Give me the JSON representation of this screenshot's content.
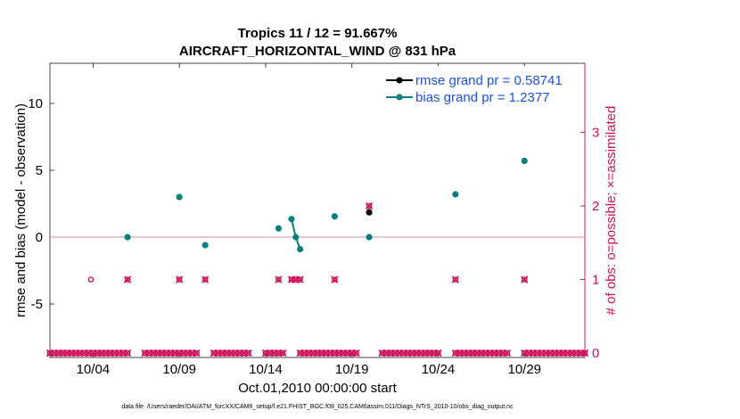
{
  "chart_data": {
    "type": "scatter",
    "title_line1": "Tropics 11 / 12 = 91.667%",
    "title_line2": "AIRCRAFT_HORIZONTAL_WIND @ 831 hPa",
    "ylabel": "rmse and bias (model - observation)",
    "y2label": "# of obs: o=possible; ×=assimilated",
    "xlabel": "Oct.01,2010 00:00:00 start",
    "footnote": "data file: /Users/raeder/DAI/ATM_forcXX/CAM6_setup/f.e21.FHIST_BGC.f09_025.CAM6assim.011/Diags_NTrS_2010-10/obs_diag_output.nc",
    "xlim": [
      1.5,
      32.5
    ],
    "ylim": [
      -9,
      13
    ],
    "y2lim": [
      -0.06,
      3.94
    ],
    "x_ticks": [
      4,
      9,
      14,
      19,
      24,
      29
    ],
    "x_tick_labels": [
      "10/04",
      "10/09",
      "10/14",
      "10/19",
      "10/24",
      "10/29"
    ],
    "y_ticks": [
      -5,
      0,
      5,
      10
    ],
    "y_tick_labels": [
      "-5",
      "0",
      "5",
      "10"
    ],
    "y2_ticks": [
      0,
      1,
      2,
      3
    ],
    "y2_tick_labels": [
      "0",
      "1",
      "2",
      "3"
    ],
    "zero_line": 0,
    "legend": {
      "position": "top-right",
      "entries": [
        {
          "label": "rmse grand pr = 0.58741",
          "color": "#000000"
        },
        {
          "label": "bias grand pr = 1.2377",
          "color": "#0a7f80"
        }
      ]
    },
    "series": [
      {
        "name": "rmse",
        "color": "#000000",
        "points": [
          [
            20.0,
            1.85
          ]
        ]
      },
      {
        "name": "bias",
        "color": "#0a7f80",
        "points": [
          [
            6.0,
            0
          ],
          [
            9.0,
            3.0
          ],
          [
            10.5,
            -0.6
          ],
          [
            14.75,
            0.65
          ],
          [
            15.5,
            1.35
          ],
          [
            15.75,
            0
          ],
          [
            16.0,
            -0.9
          ],
          [
            18.0,
            1.55
          ],
          [
            20.0,
            0
          ],
          [
            25.0,
            3.2
          ],
          [
            29.0,
            5.7
          ]
        ],
        "connected_segments": [
          [
            15.5,
            15.75,
            16.0
          ]
        ]
      },
      {
        "name": "obs_possible",
        "color": "#d0105a",
        "marker": "circle",
        "count_axis": "right",
        "points": [
          [
            3.875,
            1
          ],
          [
            6.0,
            1
          ],
          [
            9.0,
            1
          ],
          [
            10.5,
            1
          ],
          [
            14.75,
            1
          ],
          [
            15.5,
            1
          ],
          [
            15.75,
            1
          ],
          [
            16.0,
            1
          ],
          [
            18.0,
            1
          ],
          [
            20.0,
            2
          ],
          [
            25.0,
            1
          ],
          [
            29.0,
            1
          ]
        ]
      },
      {
        "name": "obs_assimilated",
        "color": "#d0105a",
        "marker": "x",
        "count_axis": "right",
        "points": [
          [
            6.0,
            1
          ],
          [
            9.0,
            1
          ],
          [
            10.5,
            1
          ],
          [
            14.75,
            1
          ],
          [
            15.5,
            1
          ],
          [
            15.75,
            1
          ],
          [
            16.0,
            1
          ],
          [
            18.0,
            1
          ],
          [
            20.0,
            2
          ],
          [
            25.0,
            1
          ],
          [
            29.0,
            1
          ]
        ]
      }
    ],
    "zero_count_row": {
      "x_start": 1.5,
      "x_end": 32.5,
      "step": 0.25,
      "value": 0,
      "gaps": [
        [
          6.25,
          6.75
        ],
        [
          10.25,
          10.75
        ],
        [
          13.25,
          13.75
        ],
        [
          15.25,
          15.75
        ],
        [
          19.5,
          20.5
        ],
        [
          24.25,
          24.75
        ],
        [
          28.25,
          28.75
        ]
      ]
    }
  }
}
